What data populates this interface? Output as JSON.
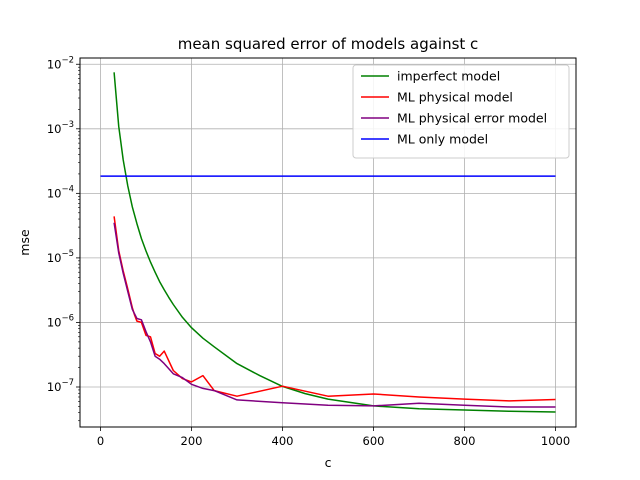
{
  "chart_data": {
    "type": "line",
    "title": "mean squared error of models against c",
    "xlabel": "c",
    "ylabel": "mse",
    "xlim": [
      -45,
      1045
    ],
    "ylim": [
      2.4e-08,
      0.0125
    ],
    "yscale": "log",
    "grid": true,
    "legend_position": "top-right",
    "x_ticks": [
      {
        "value": 0,
        "label": "0"
      },
      {
        "value": 200,
        "label": "200"
      },
      {
        "value": 400,
        "label": "400"
      },
      {
        "value": 600,
        "label": "600"
      },
      {
        "value": 800,
        "label": "800"
      },
      {
        "value": 1000,
        "label": "1000"
      }
    ],
    "y_ticks": [
      {
        "value": 1e-07,
        "base": "10",
        "exp": "−7"
      },
      {
        "value": 1e-06,
        "base": "10",
        "exp": "−6"
      },
      {
        "value": 1e-05,
        "base": "10",
        "exp": "−5"
      },
      {
        "value": 0.0001,
        "base": "10",
        "exp": "−4"
      },
      {
        "value": 0.001,
        "base": "10",
        "exp": "−3"
      },
      {
        "value": 0.01,
        "base": "10",
        "exp": "−2"
      }
    ],
    "series": [
      {
        "name": "imperfect model",
        "color": "#008000",
        "x": [
          30,
          40,
          50,
          60,
          70,
          80,
          90,
          100,
          110,
          120,
          130,
          140,
          150,
          160,
          180,
          200,
          225,
          250,
          300,
          350,
          400,
          450,
          500,
          600,
          700,
          800,
          900,
          1000
        ],
        "y": [
          0.0075,
          0.0011,
          0.00033,
          0.00013,
          6.2e-05,
          3.4e-05,
          2e-05,
          1.28e-05,
          8.6e-06,
          6e-06,
          4.3e-06,
          3.2e-06,
          2.45e-06,
          1.9e-06,
          1.2e-06,
          8.3e-07,
          5.7e-07,
          4.2e-07,
          2.3e-07,
          1.5e-07,
          1.02e-07,
          7.9e-08,
          6.5e-08,
          5.1e-08,
          4.6e-08,
          4.4e-08,
          4.2e-08,
          4.1e-08
        ]
      },
      {
        "name": "ML physical model",
        "color": "#ff0000",
        "x": [
          30,
          40,
          50,
          60,
          70,
          75,
          80,
          90,
          100,
          110,
          120,
          130,
          140,
          160,
          180,
          200,
          225,
          250,
          300,
          400,
          500,
          600,
          700,
          800,
          900,
          1000
        ],
        "y": [
          4.4e-05,
          1.3e-05,
          6.3e-06,
          3.3e-06,
          1.7e-06,
          1.3e-06,
          1.05e-06,
          1e-06,
          6.3e-07,
          6e-07,
          3.3e-07,
          3e-07,
          3.6e-07,
          1.8e-07,
          1.35e-07,
          1.2e-07,
          1.5e-07,
          8.8e-08,
          7.2e-08,
          1.03e-07,
          7.2e-08,
          7.8e-08,
          7e-08,
          6.5e-08,
          6.1e-08,
          6.4e-08
        ]
      },
      {
        "name": "ML physical error model",
        "color": "#800080",
        "x": [
          30,
          40,
          50,
          60,
          70,
          80,
          90,
          100,
          110,
          120,
          130,
          140,
          160,
          180,
          200,
          225,
          250,
          300,
          400,
          500,
          600,
          700,
          800,
          900,
          1000
        ],
        "y": [
          3.5e-05,
          1.2e-05,
          5.8e-06,
          3e-06,
          1.6e-06,
          1.15e-06,
          1.1e-06,
          7.2e-07,
          5e-07,
          3e-07,
          2.7e-07,
          2.3e-07,
          1.6e-07,
          1.4e-07,
          1.1e-07,
          9.5e-08,
          8.8e-08,
          6.3e-08,
          5.7e-08,
          5.2e-08,
          5.1e-08,
          5.6e-08,
          5.2e-08,
          4.9e-08,
          4.9e-08
        ]
      },
      {
        "name": "ML only model",
        "color": "#0000ff",
        "x": [
          0,
          1000
        ],
        "y": [
          0.000185,
          0.000185
        ]
      }
    ]
  }
}
